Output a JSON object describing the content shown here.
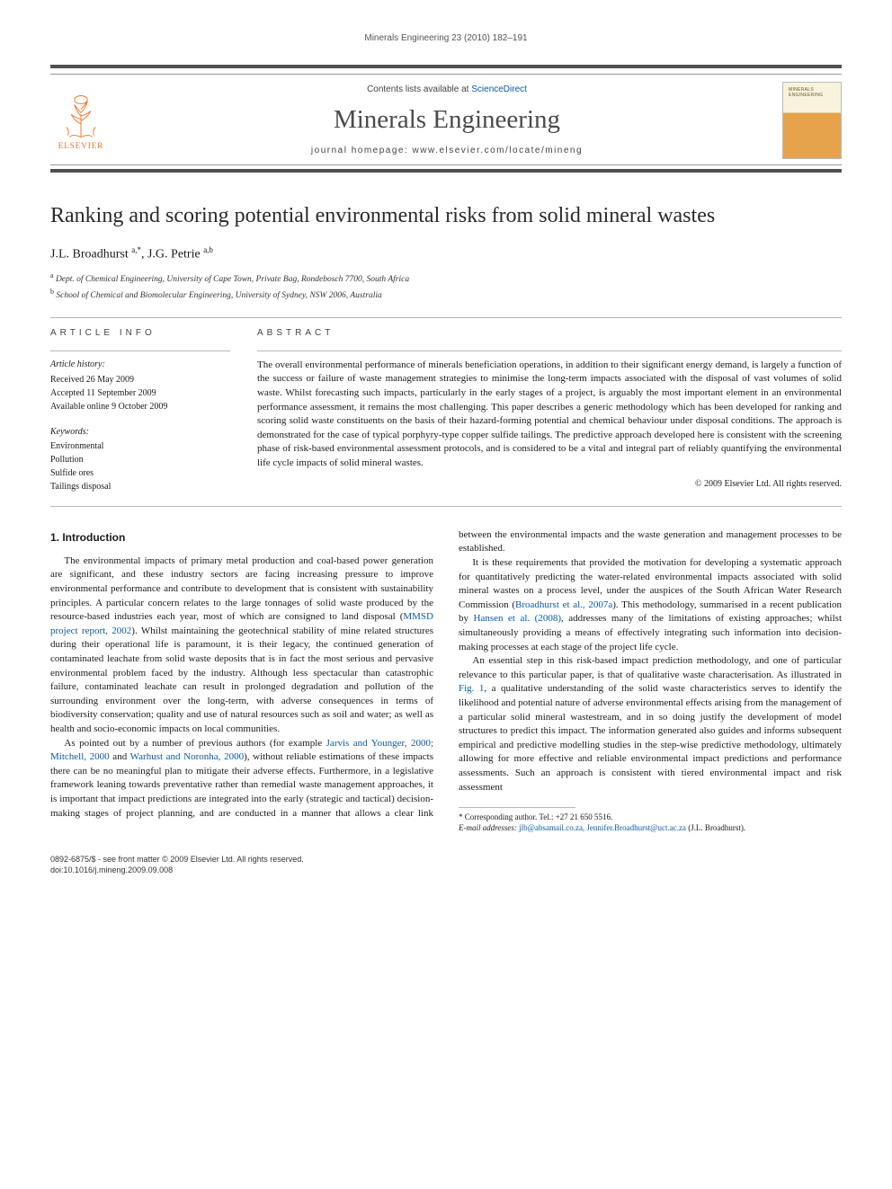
{
  "running_head": "Minerals Engineering 23 (2010) 182–191",
  "masthead": {
    "lists_prefix": "Contents lists available at ",
    "lists_link": "ScienceDirect",
    "journal": "Minerals Engineering",
    "homepage_prefix": "journal homepage: ",
    "homepage_url": "www.elsevier.com/locate/mineng",
    "publisher": "ELSEVIER",
    "cover_label": "MINERALS ENGINEERING"
  },
  "article": {
    "title": "Ranking and scoring potential environmental risks from solid mineral wastes",
    "authors_html": "J.L. Broadhurst <sup>a,*</sup>, J.G. Petrie <sup>a,b</sup>",
    "affiliations": [
      {
        "marker": "a",
        "text": "Dept. of Chemical Engineering, University of Cape Town, Private Bag, Rondebosch 7700, South Africa"
      },
      {
        "marker": "b",
        "text": "School of Chemical and Biomolecular Engineering, University of Sydney, NSW 2006, Australia"
      }
    ]
  },
  "info": {
    "heading_left": "ARTICLE INFO",
    "heading_right": "ABSTRACT",
    "history_label": "Article history:",
    "history": [
      "Received 26 May 2009",
      "Accepted 11 September 2009",
      "Available online 9 October 2009"
    ],
    "keywords_label": "Keywords:",
    "keywords": [
      "Environmental",
      "Pollution",
      "Sulfide ores",
      "Tailings disposal"
    ]
  },
  "abstract": {
    "body": "The overall environmental performance of minerals beneficiation operations, in addition to their significant energy demand, is largely a function of the success or failure of waste management strategies to minimise the long-term impacts associated with the disposal of vast volumes of solid waste. Whilst forecasting such impacts, particularly in the early stages of a project, is arguably the most important element in an environmental performance assessment, it remains the most challenging. This paper describes a generic methodology which has been developed for ranking and scoring solid waste constituents on the basis of their hazard-forming potential and chemical behaviour under disposal conditions. The approach is demonstrated for the case of typical porphyry-type copper sulfide tailings. The predictive approach developed here is consistent with the screening phase of risk-based environmental assessment protocols, and is considered to be a vital and integral part of reliably quantifying the environmental life cycle impacts of solid mineral wastes.",
    "copyright": "© 2009 Elsevier Ltd. All rights reserved."
  },
  "section_heading": "1. Introduction",
  "paragraphs": [
    "The environmental impacts of primary metal production and coal-based power generation are significant, and these industry sectors are facing increasing pressure to improve environmental performance and contribute to development that is consistent with sustainability principles. A particular concern relates to the large tonnages of solid waste produced by the resource-based industries each year, most of which are consigned to land disposal (<span class=\"cite\">MMSD project report, 2002</span>). Whilst maintaining the geotechnical stability of mine related structures during their operational life is paramount, it is their legacy, the continued generation of contaminated leachate from solid waste deposits that is in fact the most serious and pervasive environmental problem faced by the industry. Although less spectacular than catastrophic failure, contaminated leachate can result in prolonged degradation and pollution of the surrounding environment over the long-term, with adverse consequences in terms of biodiversity conservation; quality and use of natural resources such as soil and water; as well as health and socio-economic impacts on local communities.",
    "As pointed out by a number of previous authors (for example <span class=\"cite\">Jarvis and Younger, 2000; Mitchell, 2000</span> and <span class=\"cite\">Warhust and Noronha, 2000</span>), without reliable estimations of these impacts there can be no meaningful plan to mitigate their adverse effects. Furthermore, in a legislative framework leaning towards preventative rather than remedial waste management approaches, it is important that impact predictions are integrated into the early (strategic and tactical) decision-making stages of project planning, and are conducted in a manner that allows a clear link between the environmental impacts and the waste generation and management processes to be established.",
    "It is these requirements that provided the motivation for developing a systematic approach for quantitatively predicting the water-related environmental impacts associated with solid mineral wastes on a process level, under the auspices of the South African Water Research Commission (<span class=\"cite\">Broadhurst et al., 2007a</span>). This methodology, summarised in a recent publication by <span class=\"cite\">Hansen et al. (2008)</span>, addresses many of the limitations of existing approaches; whilst simultaneously providing a means of effectively integrating such information into decision-making processes at each stage of the project life cycle.",
    "An essential step in this risk-based impact prediction methodology, and one of particular relevance to this particular paper, is that of qualitative waste characterisation. As illustrated in <span class=\"cite\">Fig. 1</span>, a qualitative understanding of the solid waste characteristics serves to identify the likelihood and potential nature of adverse environmental effects arising from the management of a particular solid mineral wastestream, and in so doing justify the development of model structures to predict this impact. The information generated also guides and informs subsequent empirical and predictive modelling studies in the step-wise predictive methodology, ultimately allowing for more effective and reliable environmental impact predictions and performance assessments. Such an approach is consistent with tiered environmental impact and risk assessment"
  ],
  "footnotes": {
    "corr_label": "* Corresponding author.",
    "corr_tel": " Tel.: +27 21 650 5516.",
    "email_label": "E-mail addresses:",
    "emails": "jlb@absamail.co.za, Jennifer.Broadhurst@uct.ac.za",
    "email_author": " (J.L. Broadhurst)."
  },
  "bottom": {
    "line1": "0892-6875/$ - see front matter © 2009 Elsevier Ltd. All rights reserved.",
    "line2": "doi:10.1016/j.mineng.2009.09.008"
  },
  "colors": {
    "link": "#0a5aa8",
    "elsevier_orange": "#f37021",
    "rule": "#b8b8b8",
    "masthead_rule": "#505050"
  }
}
